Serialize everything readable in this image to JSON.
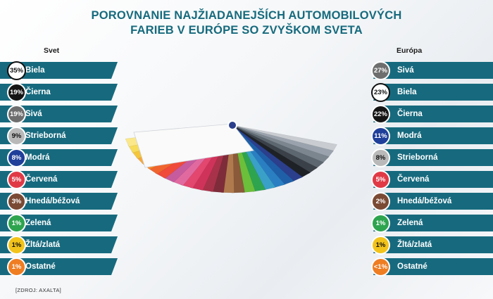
{
  "title_line1": "POROVNANIE NAJŽIADANEJŠÍCH AUTOMOBILOVÝCH",
  "title_line2": "FARIEB V EURÓPE SO ZVYŠKOM SVETA",
  "source": "[ZDROJ: AXALTA]",
  "chart_data": [
    {
      "type": "table",
      "title": "Svet",
      "categories": [
        "Biela",
        "Čierna",
        "Sivá",
        "Strieborná",
        "Modrá",
        "Červená",
        "Hnedá/béžová",
        "Zelená",
        "Žltá/zlatá",
        "Ostatné"
      ],
      "labels": [
        "35%",
        "19%",
        "19%",
        "9%",
        "8%",
        "5%",
        "3%",
        "1%",
        "1%",
        "1%"
      ],
      "values": [
        35,
        19,
        19,
        9,
        8,
        5,
        3,
        1,
        1,
        1
      ],
      "colors": [
        "#ffffff",
        "#151515",
        "#6e6e6e",
        "#b9b9b9",
        "#1f3f9a",
        "#e03a46",
        "#7a4a34",
        "#2ea44f",
        "#f2c31a",
        "#ef7d22"
      ]
    },
    {
      "type": "table",
      "title": "Európa",
      "categories": [
        "Sivá",
        "Biela",
        "Čierna",
        "Modrá",
        "Strieborná",
        "Červená",
        "Hnedá/béžová",
        "Zelená",
        "Žltá/zlatá",
        "Ostatné"
      ],
      "labels": [
        "27%",
        "23%",
        "22%",
        "11%",
        "8%",
        "5%",
        "2%",
        "1%",
        "1%",
        "<1%"
      ],
      "values": [
        27,
        23,
        22,
        11,
        8,
        5,
        2,
        1,
        1,
        0.5
      ],
      "colors": [
        "#6e6e6e",
        "#ffffff",
        "#151515",
        "#1f3f9a",
        "#b9b9b9",
        "#e03a46",
        "#7a4a34",
        "#2ea44f",
        "#f2c31a",
        "#ef7d22"
      ]
    }
  ]
}
